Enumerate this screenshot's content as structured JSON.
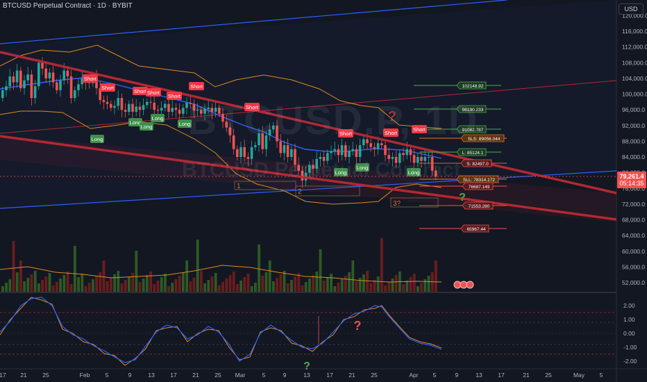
{
  "header": {
    "title": "BTCUSD Perpetual Contract · 1D · BYBIT"
  },
  "watermark": {
    "symbol": "BTCUSD.P, 1D",
    "description": "BTCUSD Perpetual Contract"
  },
  "currency_button": "USD",
  "price_axis": {
    "ticks": [
      "116,000.0",
      "112,000.0",
      "108,000.0",
      "104,000.0",
      "100,000.0",
      "96,000.0",
      "92,000.0",
      "88,000.0",
      "84,000.0",
      "80,000.0",
      "76,000.0",
      "72,000.0",
      "68,000.0",
      "64,000.0",
      "60,000.0",
      "56,000.0",
      "52,000.0"
    ],
    "partial_top_tick": "120,000.0",
    "last_price": "79,261.4",
    "countdown": "05:14:35"
  },
  "oscillator_axis": {
    "ticks": [
      "2.00",
      "1.00",
      "0.00",
      "-1.00",
      "-2.00"
    ]
  },
  "time_axis": {
    "ticks": [
      "17",
      "21",
      "25",
      "Feb",
      "5",
      "9",
      "13",
      "17",
      "21",
      "25",
      "Mar",
      "5",
      "9",
      "13",
      "17",
      "21",
      "25",
      "Apr",
      "5",
      "9",
      "13",
      "17",
      "21",
      "25",
      "May",
      "5"
    ]
  },
  "signals": {
    "short": "Short",
    "long": "Long"
  },
  "level_labels": [
    {
      "text": "102148.92",
      "color": "#4caf50"
    },
    {
      "text": "96190.233",
      "color": "#4caf50"
    },
    {
      "text": "91082.787",
      "color": "#4caf50"
    },
    {
      "text": "SLS: 89056.044",
      "color": "#e0762b"
    },
    {
      "text": "L: 85124.1",
      "color": "#4caf50"
    },
    {
      "text": "S: 82497.0",
      "color": "#ef5350"
    },
    {
      "text": "SLL: 78314.172",
      "color": "#e0762b"
    },
    {
      "text": "76687.149",
      "color": "#ef5350"
    },
    {
      "text": "71553.280",
      "color": "#ef5350"
    },
    {
      "text": "65967.44",
      "color": "#ef5350"
    }
  ],
  "wave_labels": [
    "1",
    "2",
    "3?"
  ],
  "question_marks": [
    "?",
    "?",
    "?",
    "?"
  ],
  "colors": {
    "bull": "#26a69a",
    "bear": "#ef5350",
    "basis": "#2962ff",
    "band": "#e08a1e",
    "trend": "#b22833",
    "channel": "#2962ff",
    "background": "#131722",
    "volume_bull": "#2e5a25",
    "volume_bear": "#6b1d1d"
  }
}
